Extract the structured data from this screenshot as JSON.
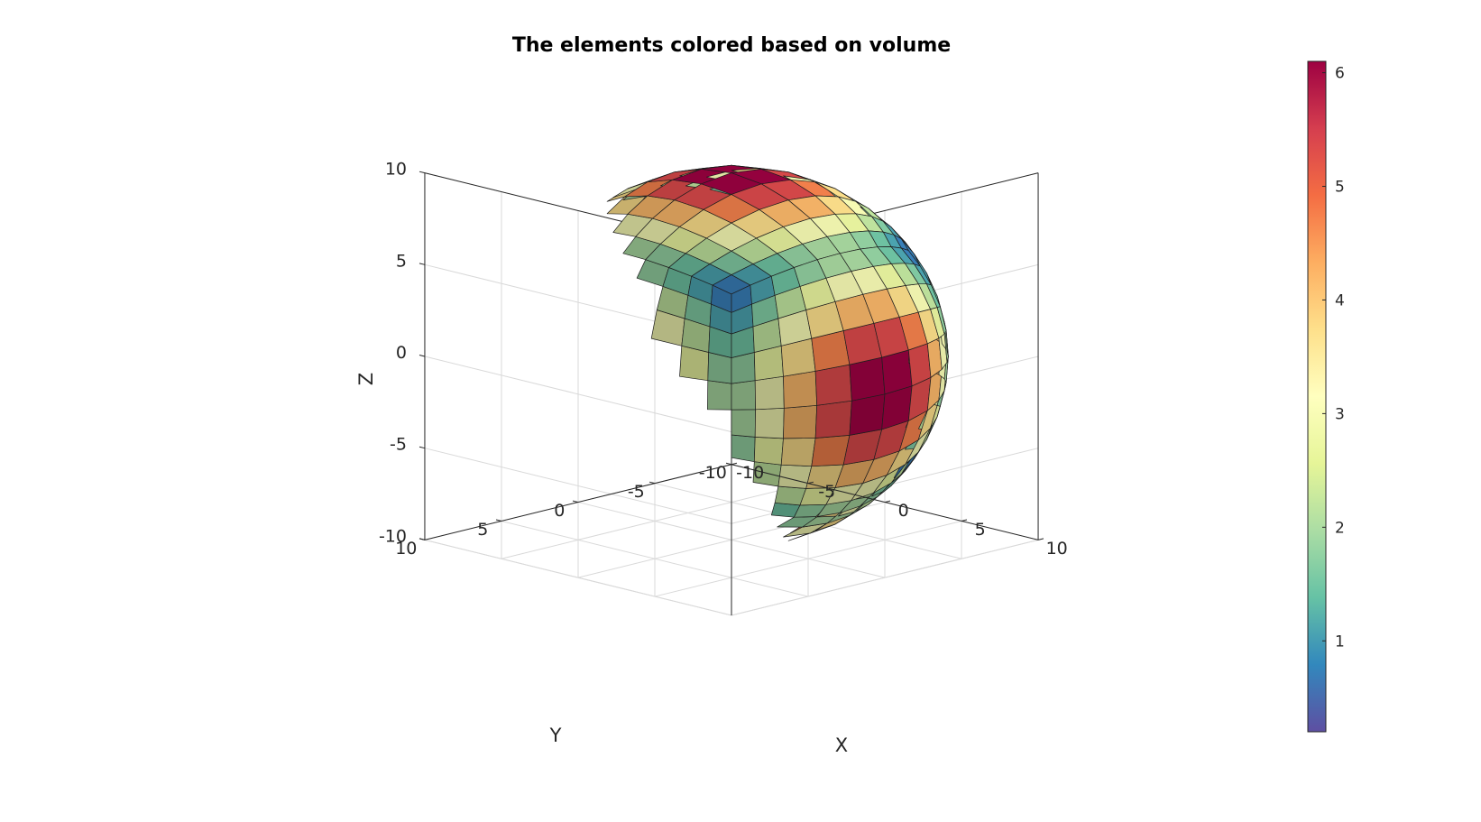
{
  "chart_data": {
    "type": "surface3d",
    "title": "The elements colored based on volume",
    "xlabel": "X",
    "ylabel": "Y",
    "zlabel": "Z",
    "xlim": [
      -10,
      10
    ],
    "ylim": [
      -10,
      10
    ],
    "zlim": [
      -10,
      10
    ],
    "x_ticks": [
      "-10",
      "-5",
      "0",
      "5",
      "10"
    ],
    "y_ticks": [
      "-10",
      "-5",
      "0",
      "5",
      "10"
    ],
    "z_ticks": [
      "-10",
      "-5",
      "0",
      "5",
      "10"
    ],
    "grid": true,
    "view": "isometric (az -45°, el ~35°)",
    "object": {
      "shape": "sphere",
      "center": [
        0,
        0,
        0
      ],
      "radius": 10,
      "mesh": "hexahedral elements projected onto a cube-sphere",
      "elements_per_cube_face_edge": 10,
      "color_variable": "element volume",
      "color_pattern": "smallest volume at the cube-face corners (8 corner points), largest near the middle of the cube-face edges"
    },
    "colorbar": {
      "colormap": "spectral",
      "colors": [
        "#5e4fa2",
        "#3288bd",
        "#66c2a5",
        "#abdda4",
        "#e6f598",
        "#ffffbf",
        "#fee08b",
        "#fdae61",
        "#f46d43",
        "#d53e4f",
        "#9e0142"
      ],
      "limits": [
        0.2,
        6.1
      ],
      "ticks": [
        "1",
        "2",
        "3",
        "4",
        "5",
        "6"
      ],
      "tick_values": [
        1,
        2,
        3,
        4,
        5,
        6
      ],
      "placement": "right"
    }
  }
}
